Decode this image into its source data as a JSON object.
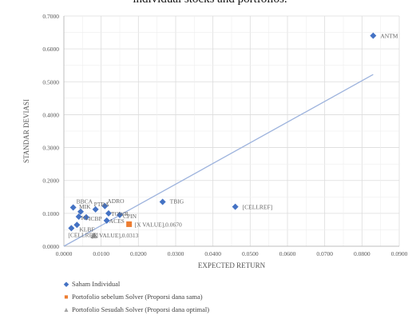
{
  "caption": "individual stocks and portfolios.",
  "chart_data": {
    "type": "scatter",
    "xlabel": "EXPECTED RETURN",
    "ylabel": "STANDAR DEVIASI",
    "xlim": [
      0,
      0.09
    ],
    "ylim": [
      0,
      0.7
    ],
    "x_ticks": [
      "0.0000",
      "0.0100",
      "0.0200",
      "0.0300",
      "0.0400",
      "0.0500",
      "0.0600",
      "0.0700",
      "0.0800",
      "0.0900"
    ],
    "y_ticks": [
      "0.0000",
      "0.1000",
      "0.2000",
      "0.3000",
      "0.4000",
      "0.5000",
      "0.6000",
      "0.7000"
    ],
    "grid": true,
    "legend_position": "bottom",
    "colors": {
      "individual": "#4472C4",
      "equal": "#ED7D31",
      "optimal": "#A5A5A5",
      "trend": "#9DB3DD"
    },
    "series": [
      {
        "name": "Saham Individual",
        "marker": "diamond",
        "points": [
          {
            "x": 0.083,
            "y": 0.64,
            "label": "ANTM"
          },
          {
            "x": 0.046,
            "y": 0.12,
            "label": "[CELLREF]"
          },
          {
            "x": 0.0265,
            "y": 0.135,
            "label": "TBIG"
          },
          {
            "x": 0.0025,
            "y": 0.118,
            "label": "BBCA"
          },
          {
            "x": 0.011,
            "y": 0.122,
            "label": "ADRO"
          },
          {
            "x": 0.0085,
            "y": 0.112,
            "label": "PTBA"
          },
          {
            "x": 0.0045,
            "y": 0.105,
            "label": "MIK"
          },
          {
            "x": 0.012,
            "y": 0.1,
            "label": "TOWR"
          },
          {
            "x": 0.015,
            "y": 0.095,
            "label": "CPIN"
          },
          {
            "x": 0.004,
            "y": 0.09,
            "label": "KL"
          },
          {
            "x": 0.006,
            "y": 0.088,
            "label": "ICBP"
          },
          {
            "x": 0.0115,
            "y": 0.078,
            "label": "ACES"
          },
          {
            "x": 0.0035,
            "y": 0.065,
            "label": "KLBF"
          },
          {
            "x": 0.002,
            "y": 0.055,
            "label": "[CELLREF]"
          }
        ]
      },
      {
        "name": "Portofolio sebelum Solver (Proporsi dana sama)",
        "marker": "square",
        "points": [
          {
            "x": 0.0175,
            "y": 0.067,
            "label": "[X VALUE],0.0670"
          }
        ]
      },
      {
        "name": "Portofolio Sesudah Solver (Proporsi dana optimal)",
        "marker": "triangle",
        "points": [
          {
            "x": 0.008,
            "y": 0.0313,
            "label": "[X VALUE],0.0313"
          }
        ]
      }
    ],
    "trendline": {
      "x": [
        0.0,
        0.083
      ],
      "y": [
        0.0,
        0.522
      ]
    },
    "legend": [
      {
        "symbol": "◆",
        "label": "Saham Individual",
        "color": "#4472C4"
      },
      {
        "symbol": "■",
        "label": "Portofolio sebelum Solver (Proporsi dana sama)",
        "color": "#ED7D31"
      },
      {
        "symbol": "▲",
        "label": "Portofolio Sesudah Solver (Proporsi dana optimal)",
        "color": "#A5A5A5"
      }
    ]
  }
}
